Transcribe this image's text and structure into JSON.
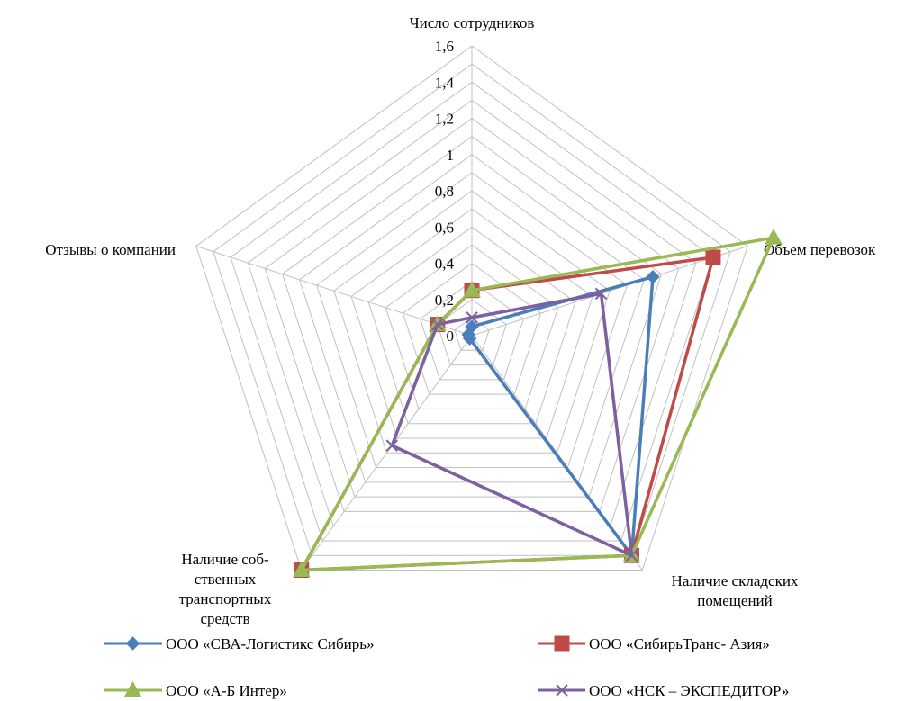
{
  "chart_data": {
    "type": "radar",
    "axes": [
      [
        "Число сотрудников"
      ],
      [
        "Объем перевозок"
      ],
      [
        "Наличие складских",
        "помещений"
      ],
      [
        "Наличие соб-",
        "ственных",
        "транспортных",
        "средств"
      ],
      [
        "Отзывы о компании"
      ]
    ],
    "ticks": [
      "0",
      "0,2",
      "0,4",
      "0,6",
      "0,8",
      "1",
      "1,2",
      "1,4",
      "1,6"
    ],
    "rlim": [
      0,
      1.6
    ],
    "grid": true,
    "legend_position": "bottom",
    "series": [
      {
        "name": "ООО «СВА-Логистикс Сибирь»",
        "color": "#4a7ebb",
        "marker": "diamond",
        "values": [
          0.05,
          1.05,
          1.5,
          0.02,
          0.02
        ]
      },
      {
        "name": "ООО «СибирьТранс- Азия»",
        "color": "#be4b48",
        "marker": "square",
        "values": [
          0.25,
          1.4,
          1.5,
          1.6,
          0.2
        ]
      },
      {
        "name": "ООО «А-Б Интер»",
        "color": "#98b954",
        "marker": "triangle",
        "values": [
          0.25,
          1.75,
          1.5,
          1.6,
          0.2
        ]
      },
      {
        "name": "ООО «НСК – ЭКСПЕДИТОР»",
        "color": "#7d60a0",
        "marker": "x",
        "values": [
          0.1,
          0.75,
          1.5,
          0.75,
          0.2
        ]
      }
    ]
  }
}
